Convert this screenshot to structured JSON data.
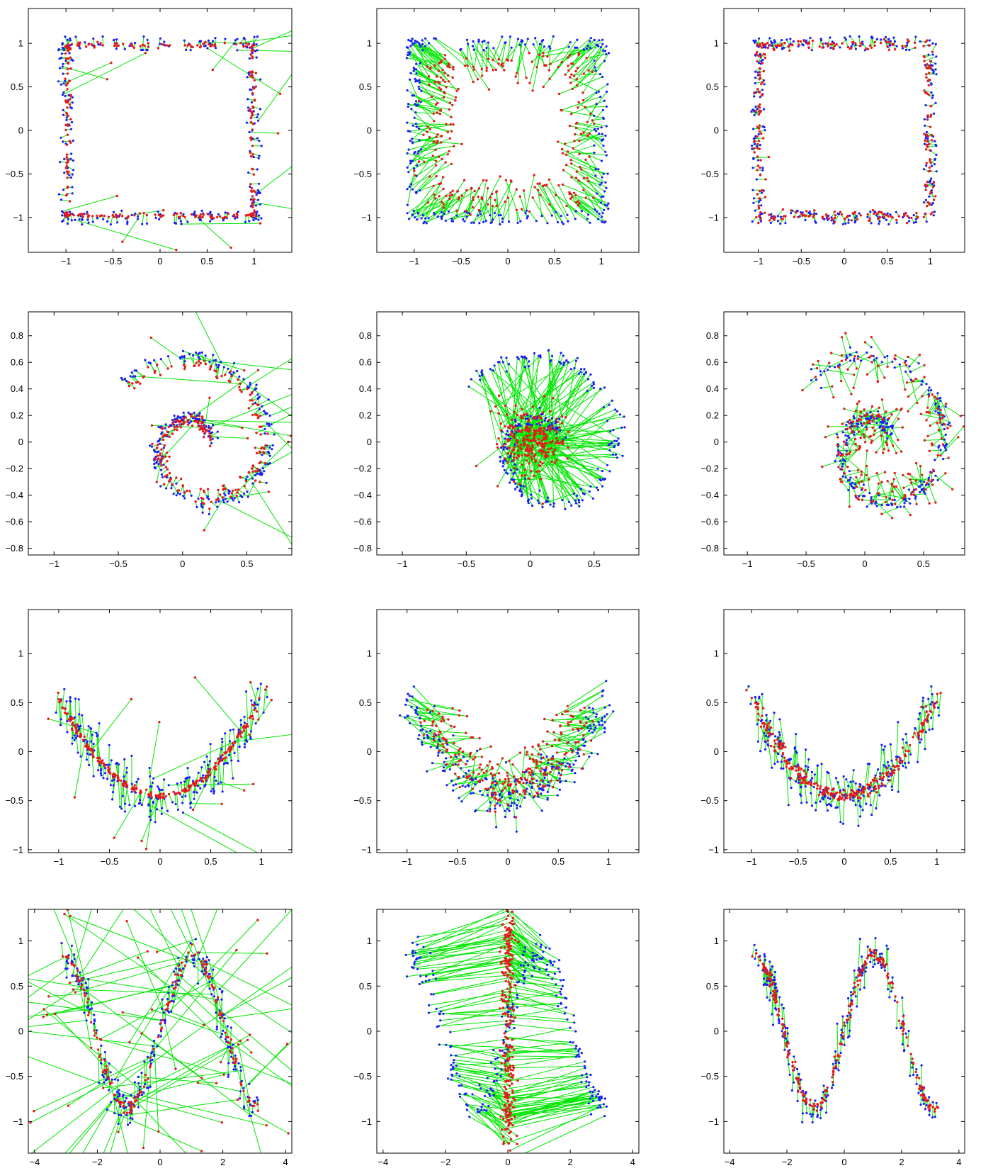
{
  "figure": {
    "colors": {
      "noisy": "#1a1aff",
      "projected": "#e61a1a",
      "displacement": "#00e600",
      "axes": "#000000"
    },
    "legend": "none"
  },
  "chart_data": [
    {
      "type": "scatter",
      "dataset": "square",
      "xlim": [
        -1.4,
        1.4
      ],
      "ylim": [
        -1.4,
        1.4
      ],
      "xticks": [
        -1,
        -0.5,
        0,
        0.5,
        1
      ],
      "yticks": [
        -1,
        -0.5,
        0,
        0.5,
        1
      ],
      "xtick_labels": [
        "−1",
        "−0.5",
        "0",
        "0.5",
        "1"
      ],
      "ytick_labels": [
        "−1",
        "−0.5",
        "0",
        "0.5",
        "1"
      ],
      "grid": false,
      "projection": "good-outliers"
    },
    {
      "type": "scatter",
      "dataset": "square",
      "xlim": [
        -1.4,
        1.4
      ],
      "ylim": [
        -1.4,
        1.4
      ],
      "xticks": [
        -1,
        -0.5,
        0,
        0.5,
        1
      ],
      "yticks": [
        -1,
        -0.5,
        0,
        0.5,
        1
      ],
      "xtick_labels": [
        "−1",
        "−0.5",
        "0",
        "0.5",
        "1"
      ],
      "ytick_labels": [
        "−1",
        "−0.5",
        "0",
        "0.5",
        "1"
      ],
      "grid": false,
      "projection": "inward"
    },
    {
      "type": "scatter",
      "dataset": "square",
      "xlim": [
        -1.4,
        1.4
      ],
      "ylim": [
        -1.4,
        1.4
      ],
      "xticks": [
        -1,
        -0.5,
        0,
        0.5,
        1
      ],
      "yticks": [
        -1,
        -0.5,
        0,
        0.5,
        1
      ],
      "xtick_labels": [
        "−1",
        "−0.5",
        "0",
        "0.5",
        "1"
      ],
      "ytick_labels": [
        "−1",
        "−0.5",
        "0",
        "0.5",
        "1"
      ],
      "grid": false,
      "projection": "close"
    },
    {
      "type": "scatter",
      "dataset": "spiral",
      "xlim": [
        -1.2,
        0.85
      ],
      "ylim": [
        -0.85,
        0.98
      ],
      "xticks": [
        -1,
        -0.5,
        0,
        0.5
      ],
      "yticks": [
        -0.8,
        -0.6,
        -0.4,
        -0.2,
        0,
        0.2,
        0.4,
        0.6,
        0.8
      ],
      "xtick_labels": [
        "−1",
        "−0.5",
        "0",
        "0.5"
      ],
      "ytick_labels": [
        "−0.8",
        "−0.6",
        "−0.4",
        "−0.2",
        "0",
        "0.2",
        "0.4",
        "0.6",
        "0.8"
      ],
      "grid": false,
      "projection": "good-outliers"
    },
    {
      "type": "scatter",
      "dataset": "spiral",
      "xlim": [
        -1.2,
        0.85
      ],
      "ylim": [
        -0.85,
        0.98
      ],
      "xticks": [
        -1,
        -0.5,
        0,
        0.5
      ],
      "yticks": [
        -0.8,
        -0.6,
        -0.4,
        -0.2,
        0,
        0.2,
        0.4,
        0.6,
        0.8
      ],
      "xtick_labels": [
        "−1",
        "−0.5",
        "0",
        "0.5"
      ],
      "ytick_labels": [
        "−0.8",
        "−0.6",
        "−0.4",
        "−0.2",
        "0",
        "0.2",
        "0.4",
        "0.6",
        "0.8"
      ],
      "grid": false,
      "projection": "centroid"
    },
    {
      "type": "scatter",
      "dataset": "spiral",
      "xlim": [
        -1.2,
        0.85
      ],
      "ylim": [
        -0.85,
        0.98
      ],
      "xticks": [
        -1,
        -0.5,
        0,
        0.5
      ],
      "yticks": [
        -0.8,
        -0.6,
        -0.4,
        -0.2,
        0,
        0.2,
        0.4,
        0.6,
        0.8
      ],
      "xtick_labels": [
        "−1",
        "−0.5",
        "0",
        "0.5"
      ],
      "ytick_labels": [
        "−0.8",
        "−0.6",
        "−0.4",
        "−0.2",
        "0",
        "0.2",
        "0.4",
        "0.6",
        "0.8"
      ],
      "grid": false,
      "projection": "medium"
    },
    {
      "type": "scatter",
      "dataset": "parabola",
      "xlim": [
        -1.3,
        1.3
      ],
      "ylim": [
        -1.03,
        1.45
      ],
      "xticks": [
        -1,
        -0.5,
        0,
        0.5,
        1
      ],
      "yticks": [
        -1,
        -0.5,
        0,
        0.5,
        1
      ],
      "xtick_labels": [
        "−1",
        "−0.5",
        "0",
        "0.5",
        "1"
      ],
      "ytick_labels": [
        "−1",
        "−0.5",
        "0",
        "0.5",
        "1"
      ],
      "grid": false,
      "projection": "good-outliers"
    },
    {
      "type": "scatter",
      "dataset": "parabola",
      "xlim": [
        -1.3,
        1.3
      ],
      "ylim": [
        -1.03,
        1.45
      ],
      "xticks": [
        -1,
        -0.5,
        0,
        0.5,
        1
      ],
      "yticks": [
        -1,
        -0.5,
        0,
        0.5,
        1
      ],
      "xtick_labels": [
        "−1",
        "−0.5",
        "0",
        "0.5",
        "1"
      ],
      "ytick_labels": [
        "−1",
        "−0.5",
        "0",
        "0.5",
        "1"
      ],
      "grid": false,
      "projection": "inward"
    },
    {
      "type": "scatter",
      "dataset": "parabola",
      "xlim": [
        -1.3,
        1.3
      ],
      "ylim": [
        -1.03,
        1.45
      ],
      "xticks": [
        -1,
        -0.5,
        0,
        0.5,
        1
      ],
      "yticks": [
        -1,
        -0.5,
        0,
        0.5,
        1
      ],
      "xtick_labels": [
        "−1",
        "−0.5",
        "0",
        "0.5",
        "1"
      ],
      "ytick_labels": [
        "−1",
        "−0.5",
        "0",
        "0.5",
        "1"
      ],
      "grid": false,
      "projection": "close"
    },
    {
      "type": "scatter",
      "dataset": "sine",
      "xlim": [
        -4.2,
        4.2
      ],
      "ylim": [
        -1.35,
        1.35
      ],
      "xticks": [
        -4,
        -2,
        0,
        2,
        4
      ],
      "yticks": [
        -1,
        -0.5,
        0,
        0.5,
        1
      ],
      "xtick_labels": [
        "−4",
        "−2",
        "0",
        "2",
        "4"
      ],
      "ytick_labels": [
        "−1",
        "−0.5",
        "0",
        "0.5",
        "1"
      ],
      "grid": false,
      "projection": "long-outliers"
    },
    {
      "type": "scatter",
      "dataset": "sine",
      "xlim": [
        -4.2,
        4.2
      ],
      "ylim": [
        -1.35,
        1.35
      ],
      "xticks": [
        -4,
        -2,
        0,
        2,
        4
      ],
      "yticks": [
        -1,
        -0.5,
        0,
        0.5,
        1
      ],
      "xtick_labels": [
        "−4",
        "−2",
        "0",
        "2",
        "4"
      ],
      "ytick_labels": [
        "−1",
        "−0.5",
        "0",
        "0.5",
        "1"
      ],
      "grid": false,
      "projection": "collapse-x"
    },
    {
      "type": "scatter",
      "dataset": "sine",
      "xlim": [
        -4.2,
        4.2
      ],
      "ylim": [
        -1.35,
        1.35
      ],
      "xticks": [
        -4,
        -2,
        0,
        2,
        4
      ],
      "yticks": [
        -1,
        -0.5,
        0,
        0.5,
        1
      ],
      "xtick_labels": [
        "−4",
        "−2",
        "0",
        "2",
        "4"
      ],
      "ytick_labels": [
        "−1",
        "−0.5",
        "0",
        "0.5",
        "1"
      ],
      "grid": false,
      "projection": "close"
    }
  ]
}
